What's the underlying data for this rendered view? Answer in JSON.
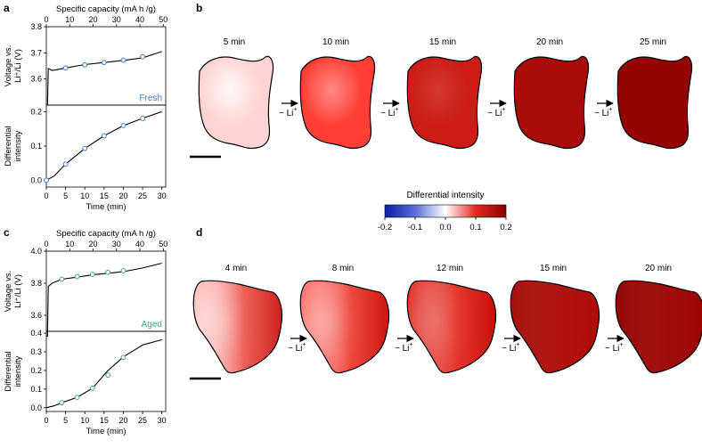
{
  "panel_labels": {
    "a": "a",
    "b": "b",
    "c": "c",
    "d": "d"
  },
  "colorbar": {
    "title": "Differential intensity",
    "ticks": [
      "-0.2",
      "-0.1",
      "0.0",
      "0.1",
      "0.2"
    ],
    "colors": {
      "low": "#0b1fa8",
      "mid": "#ffffff",
      "high": "#8b0000"
    }
  },
  "arrow_label": "− Li",
  "arrow_sup": "+",
  "chart_data": [
    {
      "id": "a",
      "type": "line",
      "top_axis": {
        "label": "Specific capacity (mA h /g)",
        "ticks": [
          0,
          10,
          20,
          30,
          40,
          50
        ]
      },
      "voltage": {
        "ylabel1": "Voltage vs.",
        "ylabel2": "Li⁺/Li (V)",
        "ylim": [
          3.5,
          3.8
        ],
        "yticks": [
          "3.6",
          "3.7",
          "3.8"
        ],
        "annotation": "Fresh",
        "marker_color": "#3a7bd5",
        "curve": [
          [
            0,
            3.5
          ],
          [
            0.3,
            3.5
          ],
          [
            0.5,
            3.64
          ],
          [
            1.5,
            3.633
          ],
          [
            2.5,
            3.635
          ],
          [
            5,
            3.642
          ],
          [
            10,
            3.655
          ],
          [
            15,
            3.663
          ],
          [
            20,
            3.671
          ],
          [
            25,
            3.681
          ],
          [
            30,
            3.705
          ]
        ],
        "markers": [
          [
            5,
            3.642
          ],
          [
            10,
            3.654
          ],
          [
            15,
            3.663
          ],
          [
            20,
            3.672
          ],
          [
            25,
            3.685
          ]
        ]
      },
      "intensity": {
        "ylabel1": "Differential",
        "ylabel2": "intensity",
        "ylim": [
          -0.02,
          0.22
        ],
        "yticks": [
          "0.0",
          "0.1",
          "0.2"
        ],
        "curve": [
          [
            0,
            0.0
          ],
          [
            2,
            0.012
          ],
          [
            5,
            0.047
          ],
          [
            10,
            0.093
          ],
          [
            15,
            0.13
          ],
          [
            20,
            0.16
          ],
          [
            25,
            0.181
          ],
          [
            30,
            0.201
          ]
        ],
        "markers": [
          [
            0,
            0.0
          ],
          [
            5,
            0.047
          ],
          [
            10,
            0.093
          ],
          [
            15,
            0.13
          ],
          [
            20,
            0.16
          ],
          [
            25,
            0.181
          ]
        ]
      },
      "time_axis": {
        "label": "Time (min)",
        "ticks": [
          0,
          5,
          10,
          15,
          20,
          25,
          30
        ]
      }
    },
    {
      "id": "c",
      "type": "line",
      "top_axis": {
        "label": "Specific capacity (mA h /g)",
        "ticks": [
          0,
          10,
          20,
          30,
          40,
          50
        ]
      },
      "voltage": {
        "ylabel1": "Voltage vs.",
        "ylabel2": "Li⁺/Li (V)",
        "ylim": [
          3.5,
          4.0
        ],
        "yticks": [
          "3.6",
          "3.8",
          "4.0"
        ],
        "annotation": "Aged",
        "marker_color": "#3aa889",
        "curve": [
          [
            0,
            3.47
          ],
          [
            0.3,
            3.47
          ],
          [
            0.5,
            3.78
          ],
          [
            1.5,
            3.8
          ],
          [
            4,
            3.825
          ],
          [
            8,
            3.838
          ],
          [
            12,
            3.852
          ],
          [
            16,
            3.862
          ],
          [
            20,
            3.872
          ],
          [
            25,
            3.895
          ],
          [
            30,
            3.925
          ]
        ],
        "markers": [
          [
            4,
            3.825
          ],
          [
            8,
            3.842
          ],
          [
            12,
            3.855
          ],
          [
            16,
            3.868
          ],
          [
            20,
            3.878
          ]
        ]
      },
      "intensity": {
        "ylabel1": "Differential",
        "ylabel2": "intensity",
        "ylim": [
          -0.02,
          0.41
        ],
        "yticks": [
          "0.0",
          "0.1",
          "0.2",
          "0.3",
          "0.4"
        ],
        "curve": [
          [
            0,
            0.0
          ],
          [
            2,
            0.01
          ],
          [
            4,
            0.027
          ],
          [
            8,
            0.056
          ],
          [
            12,
            0.105
          ],
          [
            16,
            0.2
          ],
          [
            20,
            0.273
          ],
          [
            25,
            0.337
          ],
          [
            30,
            0.365
          ]
        ],
        "markers": [
          [
            4,
            0.027
          ],
          [
            8,
            0.056
          ],
          [
            12,
            0.105
          ],
          [
            16,
            0.175
          ],
          [
            20,
            0.27
          ]
        ]
      },
      "time_axis": {
        "label": "Time (min)",
        "ticks": [
          0,
          5,
          10,
          15,
          20,
          25,
          30
        ]
      }
    },
    {
      "id": "b",
      "type": "heatmap",
      "maps": [
        {
          "label": "5 min",
          "level": 0.02
        },
        {
          "label": "10 min",
          "level": 0.09
        },
        {
          "label": "15 min",
          "level": 0.13
        },
        {
          "label": "20 min",
          "level": 0.17
        },
        {
          "label": "25 min",
          "level": 0.19
        }
      ]
    },
    {
      "id": "d",
      "type": "heatmap",
      "maps": [
        {
          "label": "4 min",
          "level": 0.03
        },
        {
          "label": "8 min",
          "level": 0.07
        },
        {
          "label": "12 min",
          "level": 0.11
        },
        {
          "label": "15 min",
          "level": 0.17
        },
        {
          "label": "20 min",
          "level": 0.19
        }
      ]
    }
  ]
}
